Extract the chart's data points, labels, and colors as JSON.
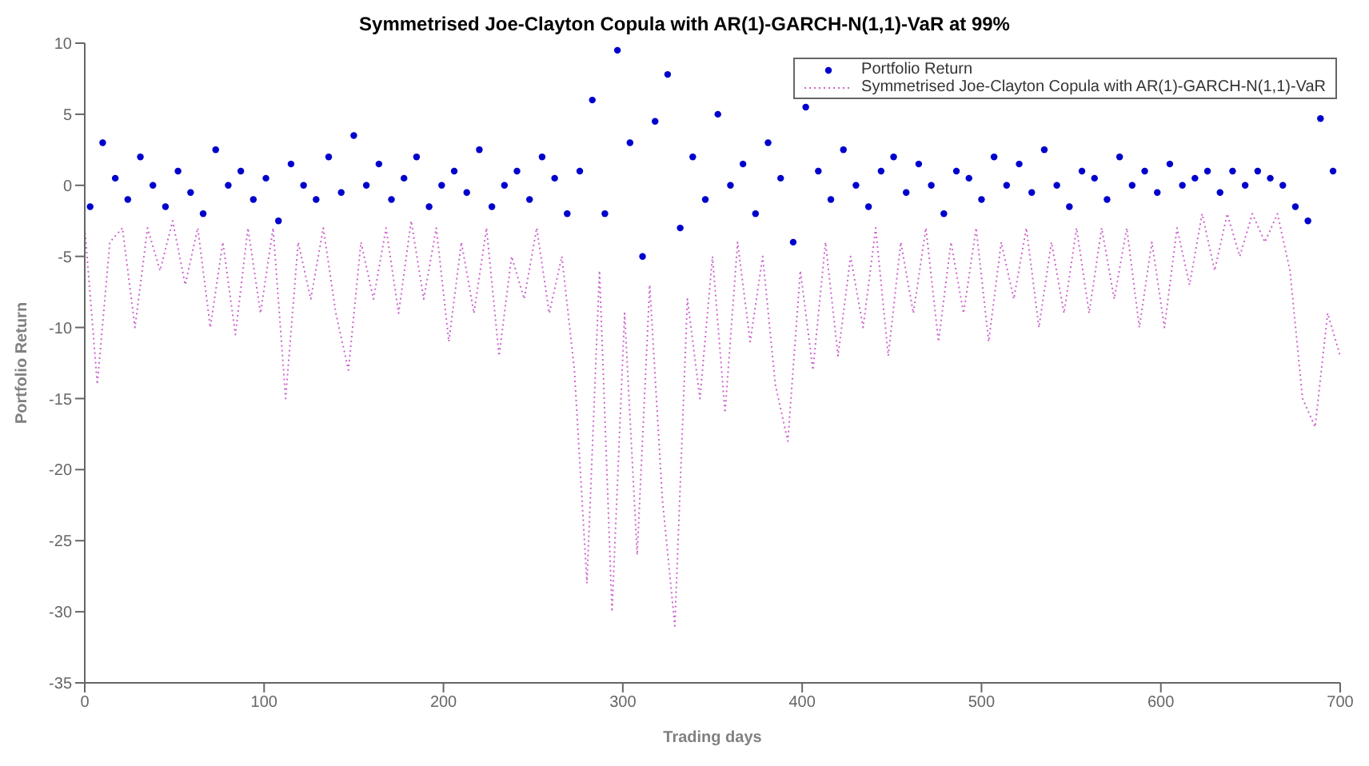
{
  "chart_data": {
    "type": "scatter",
    "title": "Symmetrised Joe-Clayton Copula with AR(1)-GARCH-N(1,1)-VaR at  99%",
    "xlabel": "Trading days",
    "ylabel": "Portfolio Return",
    "xlim": [
      0,
      700
    ],
    "xticks": [
      0,
      100,
      200,
      300,
      400,
      500,
      600,
      700
    ],
    "ylim": [
      -35,
      10
    ],
    "yticks": [
      -35,
      -30,
      -25,
      -20,
      -15,
      -10,
      -5,
      0,
      5,
      10
    ],
    "legend": "top right",
    "grid": false,
    "series": [
      {
        "name": "Portfolio Return",
        "marker": "circle",
        "color": "#0000cc",
        "x": [
          3,
          10,
          17,
          24,
          31,
          38,
          45,
          52,
          59,
          66,
          73,
          80,
          87,
          94,
          101,
          108,
          115,
          122,
          129,
          136,
          143,
          150,
          157,
          164,
          171,
          178,
          185,
          192,
          199,
          206,
          213,
          220,
          227,
          234,
          241,
          248,
          255,
          262,
          269,
          276,
          283,
          290,
          297,
          304,
          311,
          318,
          325,
          332,
          339,
          346,
          353,
          360,
          367,
          374,
          381,
          388,
          395,
          402,
          409,
          416,
          423,
          430,
          437,
          444,
          451,
          458,
          465,
          472,
          479,
          486,
          493,
          500,
          507,
          514,
          521,
          528,
          535,
          542,
          549,
          556,
          563,
          570,
          577,
          584,
          591,
          598,
          605,
          612,
          619,
          626,
          633,
          640,
          647,
          654,
          661,
          668,
          675,
          682,
          689,
          696
        ],
        "values": [
          -1.5,
          3,
          0.5,
          -1,
          2,
          0,
          -1.5,
          1,
          -0.5,
          -2,
          2.5,
          0,
          1,
          -1,
          0.5,
          -2.5,
          1.5,
          0,
          -1,
          2,
          -0.5,
          3.5,
          0,
          1.5,
          -1,
          0.5,
          2,
          -1.5,
          0,
          1,
          -0.5,
          2.5,
          -1.5,
          0,
          1,
          -1,
          2,
          0.5,
          -2,
          1,
          6,
          -2,
          9.5,
          3,
          -5,
          4.5,
          7.8,
          -3,
          2,
          -1,
          5,
          0,
          1.5,
          -2,
          3,
          0.5,
          -4,
          5.5,
          1,
          -1,
          2.5,
          0,
          -1.5,
          1,
          2,
          -0.5,
          1.5,
          0,
          -2,
          1,
          0.5,
          -1,
          2,
          0,
          1.5,
          -0.5,
          2.5,
          0,
          -1.5,
          1,
          0.5,
          -1,
          2,
          0,
          1,
          -0.5,
          1.5,
          0,
          0.5,
          1,
          -0.5,
          1,
          0,
          1,
          0.5,
          0,
          -1.5,
          -2.5,
          4.7,
          1
        ]
      },
      {
        "name": "Symmetrised Joe-Clayton Copula with AR(1)-GARCH-N(1,1)-VaR",
        "type": "line",
        "line_style": "dotted",
        "color": "#cc66cc",
        "x": [
          0,
          7,
          14,
          21,
          28,
          35,
          42,
          49,
          56,
          63,
          70,
          77,
          84,
          91,
          98,
          105,
          112,
          119,
          126,
          133,
          140,
          147,
          154,
          161,
          168,
          175,
          182,
          189,
          196,
          203,
          210,
          217,
          224,
          231,
          238,
          245,
          252,
          259,
          266,
          273,
          280,
          287,
          294,
          301,
          308,
          315,
          322,
          329,
          336,
          343,
          350,
          357,
          364,
          371,
          378,
          385,
          392,
          399,
          406,
          413,
          420,
          427,
          434,
          441,
          448,
          455,
          462,
          469,
          476,
          483,
          490,
          497,
          504,
          511,
          518,
          525,
          532,
          539,
          546,
          553,
          560,
          567,
          574,
          581,
          588,
          595,
          602,
          609,
          616,
          623,
          630,
          637,
          644,
          651,
          658,
          665,
          672,
          679,
          686,
          693,
          700
        ],
        "values": [
          -3,
          -14,
          -4,
          -3,
          -10,
          -3,
          -6,
          -2.5,
          -7,
          -3,
          -10,
          -4,
          -10.5,
          -3,
          -9,
          -3,
          -15,
          -4,
          -8,
          -3,
          -9,
          -13,
          -4,
          -8,
          -3,
          -9,
          -2.5,
          -8,
          -3,
          -11,
          -4,
          -9,
          -3,
          -12,
          -5,
          -8,
          -3,
          -9,
          -5,
          -13,
          -28,
          -6,
          -30,
          -9,
          -26,
          -7,
          -22,
          -31,
          -8,
          -15,
          -5,
          -16,
          -4,
          -11,
          -5,
          -14,
          -18,
          -6,
          -13,
          -4,
          -12,
          -5,
          -10,
          -3,
          -12,
          -4,
          -9,
          -3,
          -11,
          -4,
          -9,
          -3,
          -11,
          -4,
          -8,
          -3,
          -10,
          -4,
          -9,
          -3,
          -9,
          -3,
          -8,
          -3,
          -10,
          -4,
          -10,
          -3,
          -7,
          -2,
          -6,
          -2,
          -5,
          -2,
          -4,
          -2,
          -6,
          -15,
          -17,
          -9,
          -12
        ]
      }
    ]
  }
}
